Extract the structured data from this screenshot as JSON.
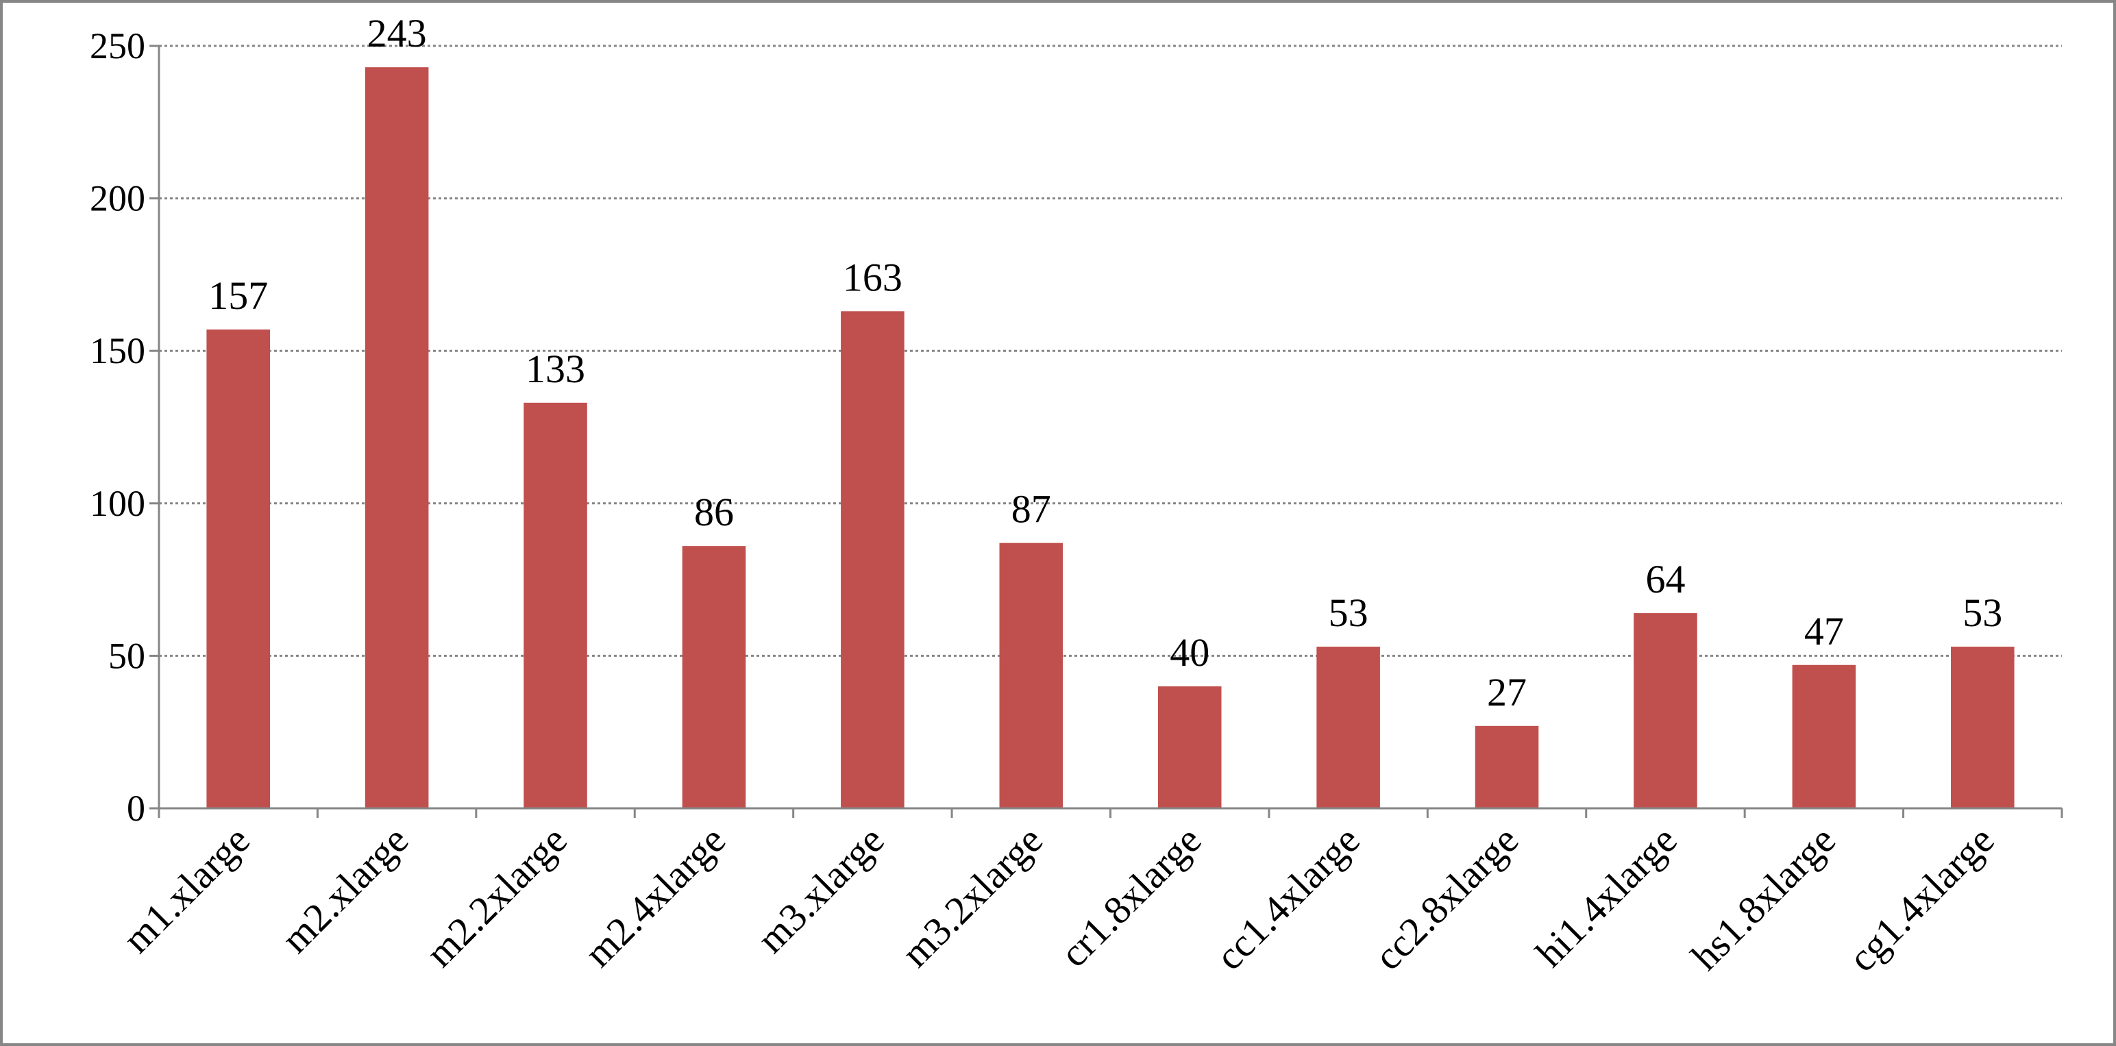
{
  "chart_data": {
    "type": "bar",
    "categories": [
      "m1.xlarge",
      "m2.xlarge",
      "m2.2xlarge",
      "m2.4xlarge",
      "m3.xlarge",
      "m3.2xlarge",
      "cr1.8xlarge",
      "cc1.4xlarge",
      "cc2.8xlarge",
      "hi1.4xlarge",
      "hs1.8xlarge",
      "cg1.4xlarge"
    ],
    "values": [
      157,
      243,
      133,
      86,
      163,
      87,
      40,
      53,
      27,
      64,
      47,
      53
    ],
    "color": "#c0504d",
    "ylim": [
      0,
      250
    ],
    "yticks": [
      0,
      50,
      100,
      150,
      200,
      250
    ],
    "grid": true,
    "data_labels": true
  }
}
